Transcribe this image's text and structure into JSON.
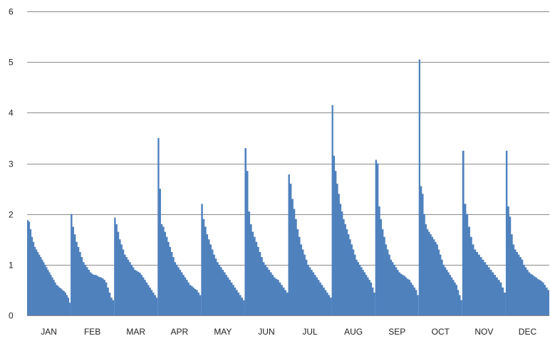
{
  "chart_data": {
    "type": "area",
    "title": "",
    "xlabel": "",
    "ylabel": "",
    "ylim": [
      0,
      6
    ],
    "yticks": [
      "0",
      "1",
      "2",
      "3",
      "4",
      "5",
      "6"
    ],
    "grid": true,
    "legend": "none",
    "series_color": "#4f81bd",
    "grid_color": "#8a8a8a",
    "categories": [
      "JAN",
      "FEB",
      "MAR",
      "APR",
      "MAY",
      "JUN",
      "JUL",
      "AUG",
      "SEP",
      "OCT",
      "NOV",
      "DEC"
    ],
    "series": [
      {
        "values": [
          [
            1.88,
            1.85,
            1.7,
            1.55,
            1.45,
            1.35,
            1.3,
            1.25,
            1.2,
            1.15,
            1.1,
            1.05,
            1.0,
            0.95,
            0.9,
            0.85,
            0.8,
            0.75,
            0.7,
            0.65,
            0.6,
            0.58,
            0.55,
            0.53,
            0.5,
            0.48,
            0.45,
            0.4,
            0.35,
            0.25
          ],
          [
            2.0,
            1.75,
            1.6,
            1.45,
            1.35,
            1.25,
            1.15,
            1.05,
            1.0,
            0.95,
            0.9,
            0.85,
            0.82,
            0.8,
            0.8,
            0.78,
            0.76,
            0.75,
            0.73,
            0.7,
            0.65,
            0.55,
            0.45,
            0.35,
            0.3
          ],
          [
            1.93,
            1.8,
            1.65,
            1.5,
            1.4,
            1.3,
            1.2,
            1.15,
            1.1,
            1.05,
            1.0,
            0.95,
            0.9,
            0.88,
            0.86,
            0.84,
            0.8,
            0.75,
            0.7,
            0.65,
            0.6,
            0.55,
            0.5,
            0.45,
            0.4,
            0.35
          ],
          [
            3.5,
            2.5,
            1.8,
            1.75,
            1.65,
            1.55,
            1.45,
            1.35,
            1.25,
            1.15,
            1.05,
            1.0,
            0.95,
            0.9,
            0.85,
            0.8,
            0.75,
            0.7,
            0.65,
            0.6,
            0.58,
            0.55,
            0.52,
            0.5,
            0.45,
            0.4
          ],
          [
            2.2,
            1.9,
            1.75,
            1.6,
            1.5,
            1.4,
            1.3,
            1.2,
            1.12,
            1.05,
            1.0,
            0.95,
            0.9,
            0.85,
            0.8,
            0.75,
            0.7,
            0.65,
            0.6,
            0.55,
            0.5,
            0.45,
            0.4,
            0.35,
            0.3
          ],
          [
            3.3,
            2.85,
            2.05,
            1.8,
            1.65,
            1.55,
            1.45,
            1.35,
            1.25,
            1.15,
            1.05,
            1.0,
            0.95,
            0.9,
            0.85,
            0.8,
            0.75,
            0.72,
            0.7,
            0.65,
            0.6,
            0.55,
            0.5,
            0.45
          ],
          [
            2.78,
            2.6,
            2.3,
            2.1,
            1.9,
            1.7,
            1.55,
            1.4,
            1.3,
            1.2,
            1.1,
            1.0,
            0.95,
            0.9,
            0.85,
            0.8,
            0.75,
            0.7,
            0.65,
            0.6,
            0.55,
            0.5,
            0.45,
            0.4,
            0.35
          ],
          [
            4.15,
            3.15,
            2.85,
            2.6,
            2.4,
            2.2,
            2.05,
            1.9,
            1.8,
            1.7,
            1.6,
            1.5,
            1.4,
            1.3,
            1.2,
            1.1,
            1.05,
            1.0,
            0.95,
            0.9,
            0.85,
            0.8,
            0.75,
            0.7,
            0.65,
            0.55,
            0.45
          ],
          [
            3.07,
            3.0,
            2.15,
            1.9,
            1.7,
            1.55,
            1.4,
            1.3,
            1.2,
            1.1,
            1.05,
            1.0,
            0.95,
            0.9,
            0.85,
            0.82,
            0.8,
            0.78,
            0.75,
            0.72,
            0.7,
            0.65,
            0.6,
            0.55,
            0.5,
            0.4
          ],
          [
            5.05,
            2.55,
            2.4,
            2.0,
            1.8,
            1.7,
            1.65,
            1.6,
            1.55,
            1.5,
            1.45,
            1.4,
            1.3,
            1.2,
            1.1,
            1.0,
            0.95,
            0.9,
            0.85,
            0.8,
            0.75,
            0.7,
            0.65,
            0.6,
            0.5,
            0.4,
            0.3
          ],
          [
            3.25,
            2.2,
            2.0,
            1.75,
            1.55,
            1.4,
            1.3,
            1.25,
            1.2,
            1.15,
            1.1,
            1.05,
            1.0,
            0.95,
            0.9,
            0.85,
            0.8,
            0.75,
            0.7,
            0.65,
            0.55,
            0.45
          ],
          [
            3.25,
            2.15,
            1.95,
            1.6,
            1.4,
            1.3,
            1.25,
            1.2,
            1.15,
            1.1,
            1.0,
            0.95,
            0.9,
            0.85,
            0.82,
            0.8,
            0.77,
            0.75,
            0.72,
            0.7,
            0.68,
            0.65,
            0.6,
            0.55,
            0.5
          ]
        ]
      }
    ]
  }
}
